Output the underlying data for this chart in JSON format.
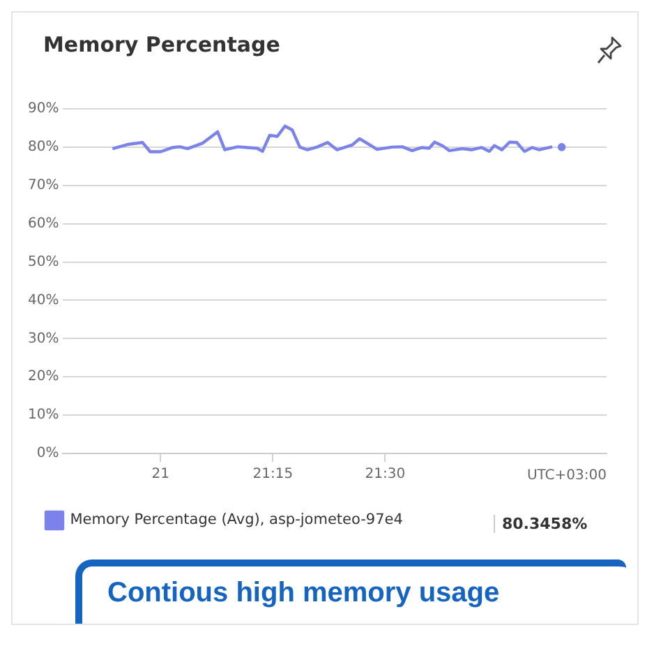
{
  "chart_data": {
    "type": "line",
    "title": "Memory Percentage",
    "xlabel": "UTC+03:00",
    "x": [
      20.893,
      20.927,
      20.96,
      20.977,
      21,
      21.027,
      21.043,
      21.06,
      21.093,
      21.127,
      21.143,
      21.172,
      21.193,
      21.215,
      21.227,
      21.243,
      21.26,
      21.277,
      21.293,
      21.31,
      21.327,
      21.348,
      21.372,
      21.393,
      21.427,
      21.443,
      21.46,
      21.482,
      21.515,
      21.538,
      21.56,
      21.582,
      21.598,
      21.61,
      21.627,
      21.643,
      21.672,
      21.693,
      21.715,
      21.732,
      21.743,
      21.76,
      21.777,
      21.793,
      21.81,
      21.827,
      21.843,
      21.872,
      21.88,
      21.893
    ],
    "series": [
      {
        "name": "Memory Percentage (Avg), asp-jometeo-97e4",
        "color": "#7b83eb",
        "values": [
          79.6,
          80.7,
          81.2,
          78.8,
          78.8,
          79.9,
          80.1,
          79.6,
          81,
          84,
          79.3,
          80.1,
          79.9,
          79.7,
          78.9,
          83.1,
          82.8,
          85.5,
          84.5,
          80,
          79.3,
          80,
          81.2,
          79.3,
          80.6,
          82.2,
          81,
          79.4,
          80,
          80.1,
          79.1,
          79.9,
          79.7,
          81.3,
          80.4,
          79.1,
          79.6,
          79.3,
          79.9,
          78.9,
          80.4,
          79.3,
          81.3,
          81.2,
          78.9,
          79.9,
          79.3,
          80.1,
          null,
          80
        ]
      }
    ],
    "xlim": [
      20.783,
      21.993
    ],
    "xticks": [
      {
        "value": 21,
        "label": "21"
      },
      {
        "value": 21.25,
        "label": "21:15"
      },
      {
        "value": 21.5,
        "label": "21:30"
      }
    ],
    "ylim": [
      0,
      90
    ],
    "yticks": [
      {
        "value": 0,
        "label": "0%"
      },
      {
        "value": 10,
        "label": "10%"
      },
      {
        "value": 20,
        "label": "20%"
      },
      {
        "value": 30,
        "label": "30%"
      },
      {
        "value": 40,
        "label": "40%"
      },
      {
        "value": 50,
        "label": "50%"
      },
      {
        "value": 60,
        "label": "60%"
      },
      {
        "value": 70,
        "label": "70%"
      },
      {
        "value": 80,
        "label": "80%"
      },
      {
        "value": 90,
        "label": "90%"
      }
    ],
    "grid": "y",
    "legend": "bottom",
    "marker": "none",
    "line_style": "solid",
    "annotations": [
      "80.3458%",
      "Contious high memory usage"
    ]
  }
}
